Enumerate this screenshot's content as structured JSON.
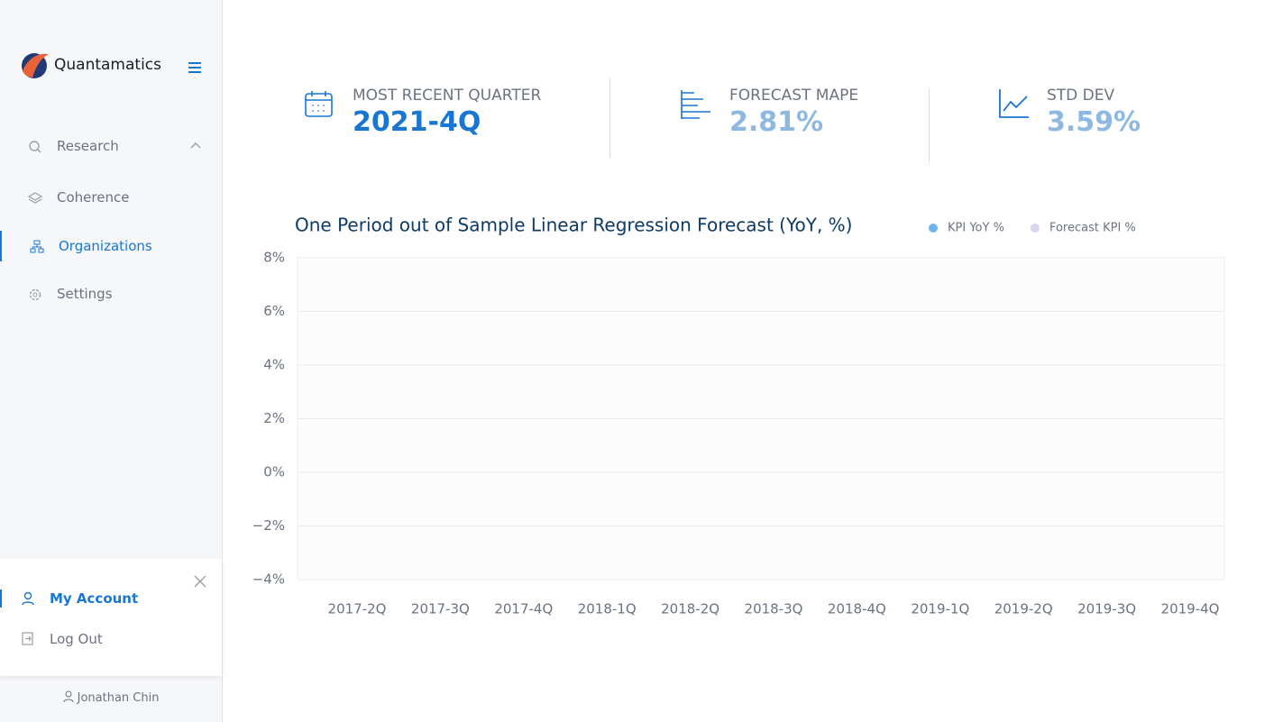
{
  "brand": "Quantamatics",
  "nav": [
    "Research",
    "Coherence",
    "Organizations",
    "Settings"
  ],
  "account_menu": [
    "My Account",
    "Log Out"
  ],
  "user": "Jonathan Chin",
  "kpis": [
    {
      "label": "MOST RECENT QUARTER",
      "value": "2021-4Q"
    },
    {
      "label": "FORECAST MAPE",
      "value": "2.81%"
    },
    {
      "label": "STD DEV",
      "value": "3.59%"
    }
  ],
  "chart_data": {
    "type": "line",
    "title": "One Period out of Sample Linear Regression Forecast (YoY, %)",
    "categories": [
      "2017-2Q",
      "2017-3Q",
      "2017-4Q",
      "2018-1Q",
      "2018-2Q",
      "2018-3Q",
      "2018-4Q",
      "2019-1Q",
      "2019-2Q",
      "2019-3Q",
      "2019-4Q"
    ],
    "series": [
      {
        "name": "KPI YoY %",
        "color": "#6cb4ee",
        "values": [
          null,
          null,
          null,
          null,
          null,
          null,
          null,
          null,
          null,
          null,
          null
        ]
      },
      {
        "name": "Forecast KPI %",
        "color": "#d9d6f2",
        "values": [
          null,
          null,
          null,
          null,
          null,
          null,
          null,
          null,
          null,
          null,
          null
        ]
      }
    ],
    "ylim": [
      -4,
      8
    ],
    "yticks": [
      {
        "value": 8,
        "label": "8%"
      },
      {
        "value": 6,
        "label": "6%"
      },
      {
        "value": 4,
        "label": "4%"
      },
      {
        "value": 2,
        "label": "2%"
      },
      {
        "value": 0,
        "label": "0%"
      },
      {
        "value": -2,
        "label": "−2%"
      },
      {
        "value": -4,
        "label": "−4%"
      }
    ],
    "grid": true,
    "legend": "top-right"
  }
}
